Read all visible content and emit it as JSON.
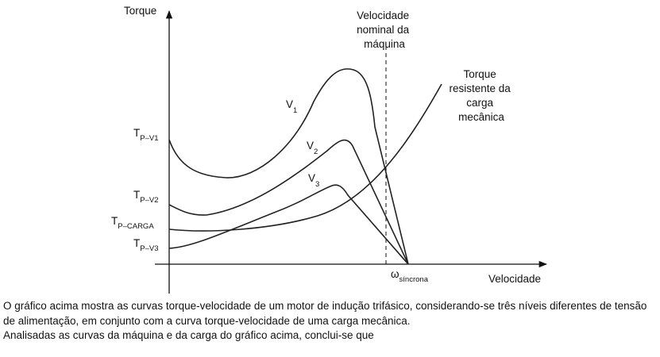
{
  "diagram": {
    "y_axis_label": "Torque",
    "x_axis_label": "Velocidade",
    "nominal_speed_label": [
      "Velocidade",
      "nominal da",
      "máquina"
    ],
    "load_curve_label": [
      "Torque",
      "resistente da",
      "carga",
      "mecânica"
    ],
    "curve_labels": [
      {
        "main": "V",
        "sub": "1"
      },
      {
        "main": "V",
        "sub": "2"
      },
      {
        "main": "V",
        "sub": "3"
      }
    ],
    "y_ticks": [
      {
        "main": "T",
        "sub": "P–V1"
      },
      {
        "main": "T",
        "sub": "P–V2"
      },
      {
        "main": "T",
        "sub": "P–CARGA"
      },
      {
        "main": "T",
        "sub": "P–V3"
      }
    ],
    "sync_label": {
      "main": "ω",
      "sub": "síncrona"
    }
  },
  "text": {
    "paragraph1": "O gráfico acima mostra as curvas torque-velocidade de um motor de indução trifásico, considerando-se três níveis diferentes de tensão de alimentação, em conjunto com a curva torque-velocidade de uma carga mecânica.",
    "paragraph2": "Analisadas as curvas da máquina e da carga do gráfico acima, conclui-se que"
  }
}
